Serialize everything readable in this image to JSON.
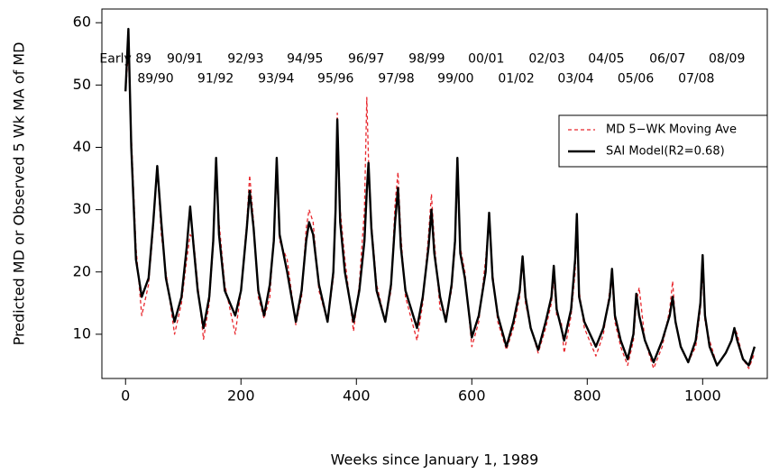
{
  "chart_data": {
    "type": "line",
    "x_label": "Weeks since January 1, 1989",
    "y_label": "Predicted MD or Observed 5 Wk MA of MD",
    "xlim": [
      -41,
      1112
    ],
    "ylim": [
      2.9,
      62.2
    ],
    "xticks": [
      0,
      200,
      400,
      600,
      800,
      1000
    ],
    "yticks": [
      10,
      20,
      30,
      40,
      50,
      60
    ],
    "legend": "right",
    "x": [
      0,
      5,
      10,
      18,
      28,
      40,
      48,
      55,
      62,
      70,
      85,
      97,
      106,
      112,
      118,
      125,
      135,
      145,
      152,
      157,
      162,
      172,
      190,
      200,
      210,
      215,
      222,
      230,
      240,
      250,
      257,
      262,
      267,
      280,
      295,
      305,
      313,
      318,
      325,
      335,
      350,
      360,
      364,
      367,
      372,
      380,
      395,
      405,
      414,
      418,
      421,
      426,
      435,
      450,
      460,
      467,
      472,
      477,
      485,
      505,
      515,
      525,
      530,
      535,
      545,
      555,
      565,
      571,
      575,
      580,
      588,
      600,
      612,
      624,
      630,
      636,
      645,
      660,
      672,
      683,
      688,
      693,
      702,
      715,
      728,
      738,
      742,
      747,
      755,
      760,
      772,
      779,
      782,
      786,
      795,
      815,
      828,
      839,
      843,
      848,
      858,
      870,
      880,
      885,
      890,
      900,
      915,
      930,
      943,
      948,
      953,
      962,
      975,
      988,
      996,
      1000,
      1004,
      1012,
      1025,
      1040,
      1050,
      1055,
      1060,
      1070,
      1080,
      1090
    ],
    "series": [
      {
        "name": "MD 5−WK Moving Ave",
        "color": "#e8262c",
        "dashed": true,
        "values": [
          49,
          55,
          42,
          24,
          13,
          18,
          27,
          37,
          26,
          20,
          10,
          15,
          22,
          26,
          25,
          18,
          9.2,
          15,
          24,
          37,
          28,
          18,
          10,
          17,
          28,
          35.5,
          28,
          16,
          12.5,
          16,
          26,
          36,
          25,
          22,
          11.5,
          16,
          27,
          30,
          28,
          17,
          12,
          19,
          32,
          45.5,
          30,
          22,
          10.5,
          18,
          30,
          48,
          38,
          28,
          18,
          12,
          17,
          31,
          36,
          26,
          16,
          9,
          15,
          26,
          32.5,
          25,
          14,
          13,
          17,
          24,
          36,
          24,
          20,
          8,
          12,
          22,
          29,
          20,
          12,
          7.5,
          11,
          16,
          22,
          15,
          11,
          7,
          11,
          15,
          19,
          13,
          12,
          7,
          13,
          20,
          28,
          17,
          11,
          6.5,
          10,
          17,
          19,
          12,
          8,
          5,
          9,
          15,
          17.5,
          9,
          4.5,
          8,
          14,
          18.5,
          12,
          8,
          5.5,
          8,
          14,
          20,
          12,
          9,
          5,
          7,
          9,
          11,
          10,
          6,
          4.5,
          7
        ]
      },
      {
        "name": "SAI Model(R2=0.68)",
        "color": "#000000",
        "dashed": false,
        "values": [
          49,
          59,
          40,
          22,
          16,
          19,
          28,
          37,
          28,
          19,
          12,
          16,
          24,
          30.5,
          24,
          17,
          11,
          16,
          25,
          38.3,
          26,
          17,
          13,
          17,
          27,
          33,
          27,
          17,
          13,
          18,
          25,
          38.3,
          26,
          20,
          12,
          17,
          25,
          28,
          26,
          18,
          12,
          20,
          30,
          44.5,
          28,
          20,
          12,
          17,
          25,
          33,
          37.5,
          27,
          17,
          12,
          18,
          28,
          33.5,
          24,
          17,
          11,
          16,
          24,
          30,
          23,
          16,
          12,
          18,
          25,
          38.3,
          23,
          19,
          9.5,
          13,
          20,
          29.5,
          19,
          13,
          8,
          12,
          17,
          22.5,
          16,
          11,
          7.5,
          12,
          16,
          21,
          14,
          11,
          9,
          14,
          22,
          29.3,
          16,
          12,
          8,
          11,
          16,
          20.5,
          13,
          9,
          6,
          10,
          16.5,
          13,
          9,
          5.5,
          9,
          13,
          16,
          12,
          8,
          5.5,
          9,
          15,
          22.7,
          13,
          8,
          5,
          7,
          9,
          11,
          9,
          6,
          5,
          8
        ]
      }
    ],
    "annotations": [
      {
        "text": "Early 89",
        "x": 0,
        "y": 54.2
      },
      {
        "text": "90/91",
        "x": 103,
        "y": 54.2
      },
      {
        "text": "92/93",
        "x": 208,
        "y": 54.2
      },
      {
        "text": "94/95",
        "x": 311,
        "y": 54.2
      },
      {
        "text": "96/97",
        "x": 417,
        "y": 54.2
      },
      {
        "text": "98/99",
        "x": 522,
        "y": 54.2
      },
      {
        "text": "00/01",
        "x": 625,
        "y": 54.2
      },
      {
        "text": "02/03",
        "x": 730,
        "y": 54.2
      },
      {
        "text": "04/05",
        "x": 833,
        "y": 54.2
      },
      {
        "text": "06/07",
        "x": 939,
        "y": 54.2
      },
      {
        "text": "08/09",
        "x": 1042,
        "y": 54.2
      },
      {
        "text": "89/90",
        "x": 52,
        "y": 51
      },
      {
        "text": "91/92",
        "x": 156,
        "y": 51
      },
      {
        "text": "93/94",
        "x": 261,
        "y": 51
      },
      {
        "text": "95/96",
        "x": 364,
        "y": 51
      },
      {
        "text": "97/98",
        "x": 469,
        "y": 51
      },
      {
        "text": "99/00",
        "x": 572,
        "y": 51
      },
      {
        "text": "01/02",
        "x": 677,
        "y": 51
      },
      {
        "text": "03/04",
        "x": 780,
        "y": 51
      },
      {
        "text": "05/06",
        "x": 884,
        "y": 51
      },
      {
        "text": "07/08",
        "x": 989,
        "y": 51
      }
    ]
  }
}
